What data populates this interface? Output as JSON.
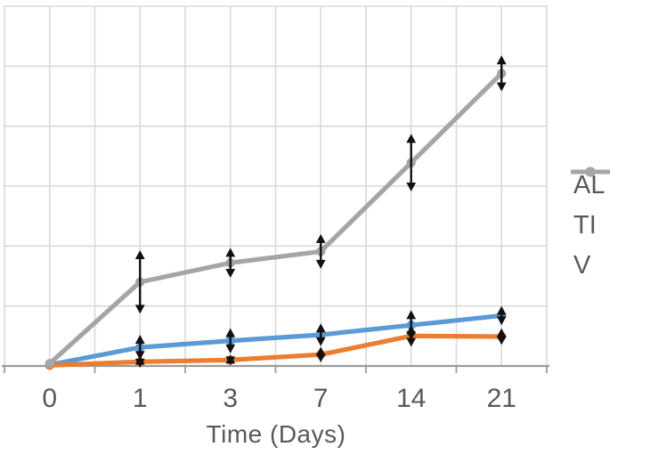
{
  "chart_data": {
    "type": "line",
    "title": "",
    "xlabel": "Time (Days)",
    "ylabel": "",
    "categories": [
      "0",
      "1",
      "3",
      "7",
      "14",
      "21"
    ],
    "ylim": [
      0,
      6
    ],
    "y_gridline_step": 1,
    "y_tick_labels_visible": false,
    "grid": true,
    "legend_position": "right",
    "series": [
      {
        "name": "AL",
        "color": "#5B9BD5",
        "values": [
          0.02,
          0.31,
          0.42,
          0.52,
          0.68,
          0.84
        ],
        "error_bars": [
          0,
          0.21,
          0.21,
          0.19,
          0.25,
          0.16
        ]
      },
      {
        "name": "TI",
        "color": "#ED7D31",
        "values": [
          0.01,
          0.07,
          0.1,
          0.19,
          0.5,
          0.49
        ],
        "error_bars": [
          0,
          0.1,
          0.09,
          0.13,
          0.18,
          0.14
        ]
      },
      {
        "name": "V",
        "color": "#A5A5A5",
        "values": [
          0.04,
          1.4,
          1.72,
          1.91,
          3.39,
          4.88
        ],
        "error_bars": [
          0,
          0.53,
          0.25,
          0.29,
          0.48,
          0.3
        ]
      }
    ],
    "error_bar_color": "#111111",
    "error_bar_cap": "arrow"
  },
  "colors": {
    "background": "#FFFFFF",
    "gridline": "#D9D9D9",
    "axis_line": "#9B9B9B",
    "text": "#595959"
  }
}
